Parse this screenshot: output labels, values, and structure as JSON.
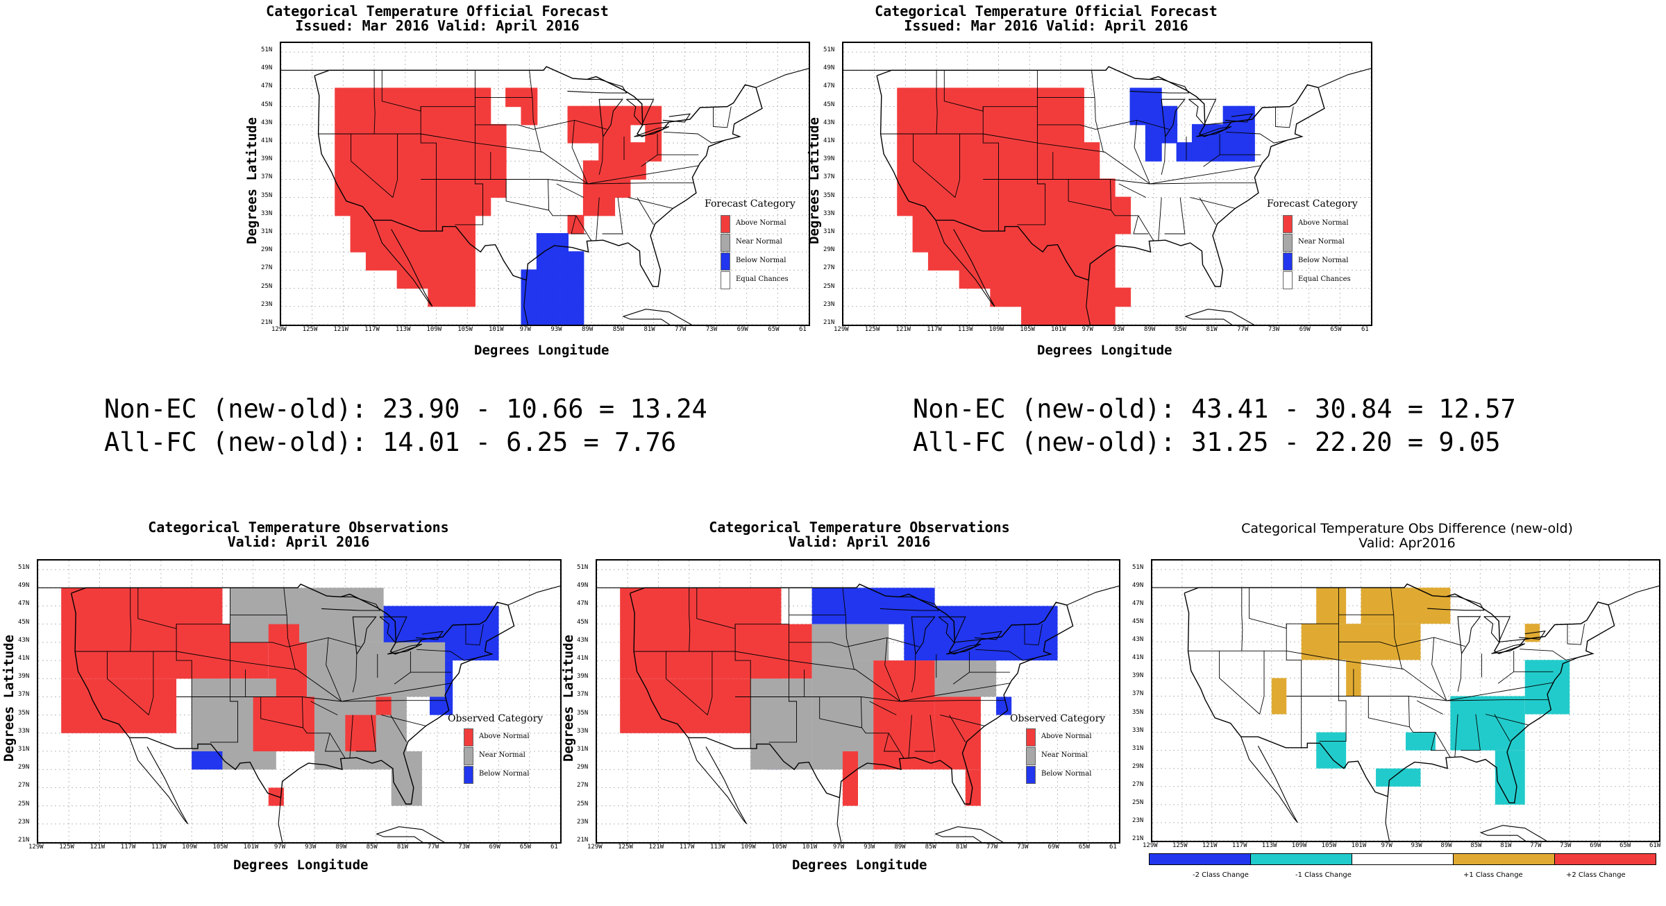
{
  "colors": {
    "above": "#f23c3c",
    "near": "#a8a8a8",
    "below": "#2136ee",
    "equal": "#ffffff",
    "minus1": "#22cbcb",
    "plus1": "#e0aa32"
  },
  "x_ticks": [
    "129W",
    "125W",
    "121W",
    "117W",
    "113W",
    "109W",
    "105W",
    "101W",
    "97W",
    "93W",
    "89W",
    "85W",
    "81W",
    "77W",
    "73W",
    "69W",
    "65W",
    "61"
  ],
  "x_ticks_diff": [
    "129W",
    "125W",
    "121W",
    "117W",
    "113W",
    "109W",
    "105W",
    "101W",
    "97W",
    "93W",
    "89W",
    "85W",
    "81W",
    "77W",
    "73W",
    "69W",
    "65W",
    "61W"
  ],
  "y_ticks": [
    "51N",
    "49N",
    "47N",
    "45N",
    "43N",
    "41N",
    "39N",
    "37N",
    "35N",
    "33N",
    "31N",
    "29N",
    "27N",
    "25N",
    "23N",
    "21N"
  ],
  "axis": {
    "ylabel": "Degrees Latitude",
    "xlabel": "Degrees Longitude"
  },
  "forecast_old": {
    "title1": "Categorical Temperature Official Forecast",
    "title2": "Issued: Mar 2016 Valid: April 2016",
    "legend_title": "Forecast Category",
    "legend": [
      "Above Normal",
      "Near Normal",
      "Below Normal",
      "Equal Chances"
    ]
  },
  "forecast_new": {
    "title1": "Categorical Temperature Official Forecast",
    "title2": "Issued: Mar 2016 Valid: April 2016",
    "legend_title": "Forecast Category",
    "legend": [
      "Above Normal",
      "Near Normal",
      "Below Normal",
      "Equal Chances"
    ]
  },
  "stats_left": {
    "line1": "Non-EC (new-old): 23.90 - 10.66 = 13.24",
    "line2": "All-FC (new-old): 14.01 - 6.25 = 7.76"
  },
  "stats_right": {
    "line1": "Non-EC (new-old): 43.41 - 30.84 = 12.57",
    "line2": "All-FC (new-old): 31.25 - 22.20 = 9.05"
  },
  "obs_old": {
    "title1": "Categorical Temperature Observations",
    "title2": "Valid: April 2016",
    "legend_title": "Observed Category",
    "legend": [
      "Above Normal",
      "Near Normal",
      "Below Normal"
    ]
  },
  "obs_new": {
    "title1": "Categorical Temperature Observations",
    "title2": "Valid: April 2016",
    "legend_title": "Observed Category",
    "legend": [
      "Above Normal",
      "Near Normal",
      "Below Normal"
    ]
  },
  "obs_diff": {
    "title1": "Categorical Temperature Obs Difference (new-old)",
    "title2": "Valid: Apr2016",
    "colorbar": [
      "-2 Class Change",
      "-1 Class Change",
      "+1 Class Change",
      "+2 Class Change"
    ]
  },
  "grids": {
    "forecast_old": [
      "................",
      "..AAAAAAAAAA.AA.",
      "..AAAAAAAAAA..A..AAAAAA",
      "..AAAAAAAAAAA....AAAA.A",
      "..AAAAAAAAAAA......AAAA",
      "..AAAAAAAAAAA.....AAAA.",
      "..AAAAAAAAAAA.....AAA..",
      "..AAAAAAAAAA......AA...",
      "...AAAAAAAA......A.....",
      "...AAAAAAAA....BB......",
      "....AAAAAAA....BBB.....",
      "......AAAAA...BBBB.....",
      "........AAA...BBBB.....",
      "..............BBBB.....",
      "..............BB......."
    ],
    "forecast_new": [
      "................",
      "..AAAAAAAAAAAA...BB.....",
      "..AAAAAAAAAAAA...BBB...BB",
      "..AAAAAAAAAAAA....BB.BBBB",
      "..AAAAAAAAAAAAA...B.BBBBB",
      "..AAAAAAAAAAAAA.........",
      "..AAAAAAAAAAAAAA........",
      "..AAAAAAAAAAAAAAA.......",
      "...AAAAAAAAAAAAAA.......",
      "...AAAAAAAAAAAAA........",
      "....AAAAAAAAAAAA........",
      "......AAAAAAAAAA........",
      "........AAAAAAAAA.......",
      "..........AAAAAA........",
      "..........AAA..........."
    ]
  }
}
